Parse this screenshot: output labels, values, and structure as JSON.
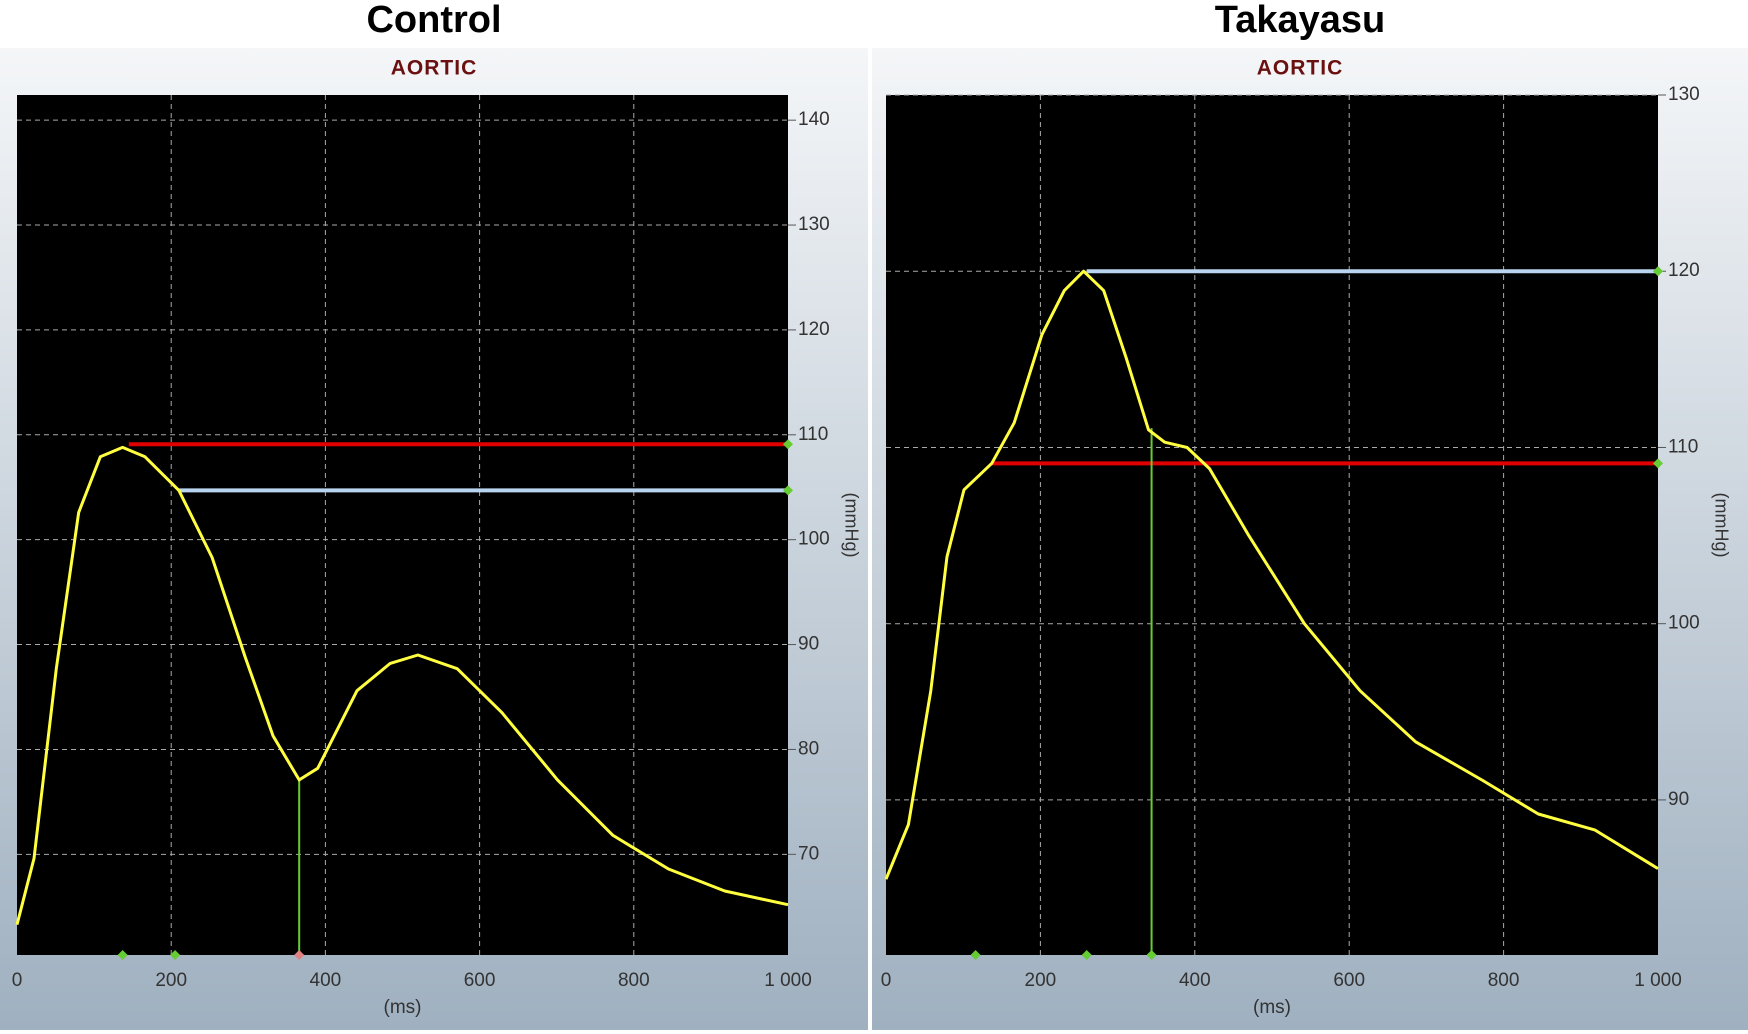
{
  "chart_data": [
    {
      "type": "line",
      "title": "Control",
      "subtitle": "AORTIC",
      "xlabel": "(ms)",
      "ylabel": "(mmHg)",
      "xlim": [
        0,
        1000
      ],
      "ylim": [
        60.4,
        142.4
      ],
      "xticks": [
        0,
        200,
        400,
        600,
        800,
        {
          "value": 1000,
          "label": "1 000"
        }
      ],
      "yticks": [
        70,
        80,
        90,
        100,
        110,
        120,
        130,
        140
      ],
      "grid": true,
      "x": [
        0,
        22,
        51,
        80,
        108,
        137,
        166,
        210,
        253,
        296,
        332,
        366,
        390,
        441,
        484,
        520,
        571,
        629,
        701,
        773,
        845,
        918,
        1000
      ],
      "series": [
        {
          "color": "#ffff40",
          "values": [
            63.3,
            69.6,
            87.7,
            102.6,
            107.9,
            108.8,
            107.9,
            104.7,
            98.3,
            88.8,
            81.3,
            77.1,
            78.2,
            85.6,
            88.2,
            89.0,
            87.7,
            83.5,
            77.1,
            71.8,
            68.6,
            66.5,
            65.2
          ]
        }
      ],
      "hlines": [
        {
          "y": 109.1,
          "x": [
            145,
            1000
          ],
          "color": "#e00000"
        },
        {
          "y": 104.7,
          "x": [
            210,
            1000
          ],
          "color": "#b8d4f0"
        }
      ],
      "vlines": [
        {
          "x": 366,
          "y": 77.1,
          "color": "#66cc33"
        }
      ],
      "x_markers": [
        {
          "x": 137,
          "color": "#66cc33"
        },
        {
          "x": 205,
          "color": "#66cc33"
        },
        {
          "x": 366,
          "color": "#e08080"
        }
      ]
    },
    {
      "type": "line",
      "title": "Takayasu",
      "subtitle": "AORTIC",
      "xlabel": "(ms)",
      "ylabel": "(mmHg)",
      "xlim": [
        0,
        1000
      ],
      "ylim": [
        81.2,
        130
      ],
      "xticks": [
        0,
        200,
        400,
        600,
        800,
        {
          "value": 1000,
          "label": "1 000"
        }
      ],
      "yticks": [
        90,
        100,
        110,
        120,
        130
      ],
      "grid": true,
      "x": [
        0,
        29,
        58,
        79,
        101,
        137,
        166,
        202,
        231,
        256,
        282,
        311,
        340,
        361,
        390,
        419,
        470,
        542,
        614,
        686,
        773,
        845,
        918,
        1000
      ],
      "series": [
        {
          "color": "#ffff40",
          "values": [
            85.5,
            88.6,
            96.2,
            103.8,
            107.6,
            109.1,
            111.4,
            116.4,
            118.9,
            120,
            118.9,
            115.1,
            111.0,
            110.3,
            110.0,
            108.8,
            105.0,
            100.0,
            96.2,
            93.3,
            91.1,
            89.2,
            88.3,
            86.1
          ]
        }
      ],
      "hlines": [
        {
          "y": 109.1,
          "x": [
            137,
            1000
          ],
          "color": "#e00000"
        },
        {
          "y": 120.0,
          "x": [
            260,
            1000
          ],
          "color": "#b8d4f0"
        }
      ],
      "vlines": [
        {
          "x": 344,
          "y": 111.1,
          "color": "#66cc33"
        }
      ],
      "x_markers": [
        {
          "x": 116,
          "color": "#66cc33"
        },
        {
          "x": 260,
          "color": "#66cc33"
        },
        {
          "x": 344,
          "color": "#66cc33"
        }
      ]
    }
  ]
}
